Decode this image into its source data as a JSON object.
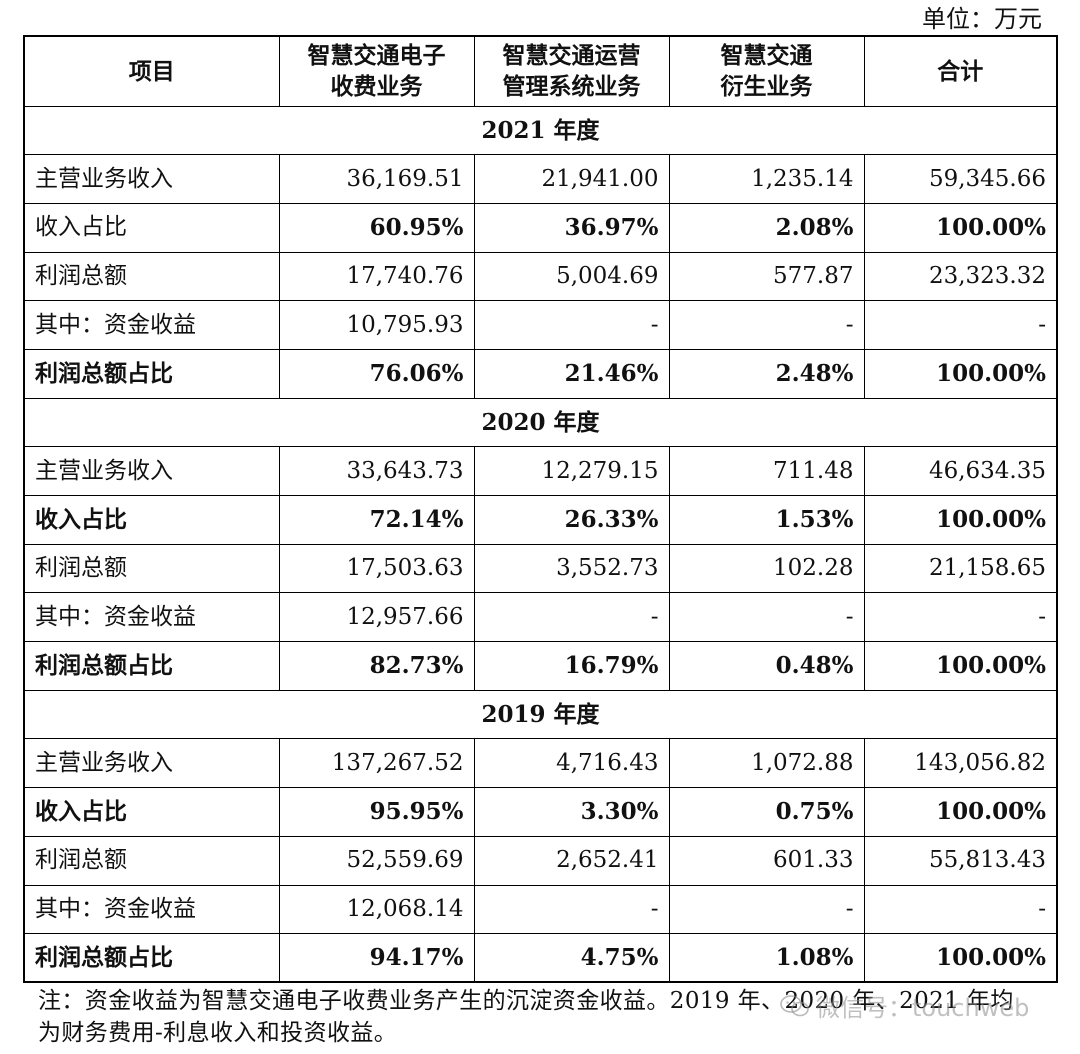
{
  "unit_label": "单位：万元",
  "headers": [
    "项目",
    "智慧交通电子收费业务",
    "智慧交通运营管理系统业务",
    "智慧交通衍生业务",
    "合计"
  ],
  "headers_lines": [
    [
      "项目"
    ],
    [
      "智慧交通电子",
      "收费业务"
    ],
    [
      "智慧交通运营",
      "管理系统业务"
    ],
    [
      "智慧交通",
      "衍生业务"
    ],
    [
      "合计"
    ]
  ],
  "sections": [
    {
      "year": "2021 年度",
      "rows": [
        {
          "label": "主营业务收入",
          "bold": false,
          "values": [
            "36,169.51",
            "21,941.00",
            "1,235.14",
            "59,345.66"
          ]
        },
        {
          "label": "收入占比",
          "bold": false,
          "bold_values": true,
          "values": [
            "60.95%",
            "36.97%",
            "2.08%",
            "100.00%"
          ]
        },
        {
          "label": "利润总额",
          "bold": false,
          "values": [
            "17,740.76",
            "5,004.69",
            "577.87",
            "23,323.32"
          ]
        },
        {
          "label": "其中：资金收益",
          "bold": false,
          "values": [
            "10,795.93",
            "-",
            "-",
            "-"
          ]
        },
        {
          "label": "利润总额占比",
          "bold": true,
          "values": [
            "76.06%",
            "21.46%",
            "2.48%",
            "100.00%"
          ]
        }
      ]
    },
    {
      "year": "2020 年度",
      "rows": [
        {
          "label": "主营业务收入",
          "bold": false,
          "values": [
            "33,643.73",
            "12,279.15",
            "711.48",
            "46,634.35"
          ]
        },
        {
          "label": "收入占比",
          "bold": true,
          "values": [
            "72.14%",
            "26.33%",
            "1.53%",
            "100.00%"
          ]
        },
        {
          "label": "利润总额",
          "bold": false,
          "values": [
            "17,503.63",
            "3,552.73",
            "102.28",
            "21,158.65"
          ]
        },
        {
          "label": "其中：资金收益",
          "bold": false,
          "values": [
            "12,957.66",
            "-",
            "-",
            "-"
          ]
        },
        {
          "label": "利润总额占比",
          "bold": true,
          "values": [
            "82.73%",
            "16.79%",
            "0.48%",
            "100.00%"
          ]
        }
      ]
    },
    {
      "year": "2019 年度",
      "rows": [
        {
          "label": "主营业务收入",
          "bold": false,
          "values": [
            "137,267.52",
            "4,716.43",
            "1,072.88",
            "143,056.82"
          ]
        },
        {
          "label": "收入占比",
          "bold": true,
          "values": [
            "95.95%",
            "3.30%",
            "0.75%",
            "100.00%"
          ]
        },
        {
          "label": "利润总额",
          "bold": false,
          "values": [
            "52,559.69",
            "2,652.41",
            "601.33",
            "55,813.43"
          ]
        },
        {
          "label": "其中：资金收益",
          "bold": false,
          "values": [
            "12,068.14",
            "-",
            "-",
            "-"
          ]
        },
        {
          "label": "利润总额占比",
          "bold": true,
          "values": [
            "94.17%",
            "4.75%",
            "1.08%",
            "100.00%"
          ]
        }
      ]
    }
  ],
  "note": {
    "line1": "注：资金收益为智慧交通电子收费业务产生的沉淀资金收益。2019 年、2020 年、2021 年均",
    "line2": "为财务费用-利息收入和投资收益。"
  },
  "watermark": "微信号：touchweb",
  "watermark_icon": "wechat-icon"
}
